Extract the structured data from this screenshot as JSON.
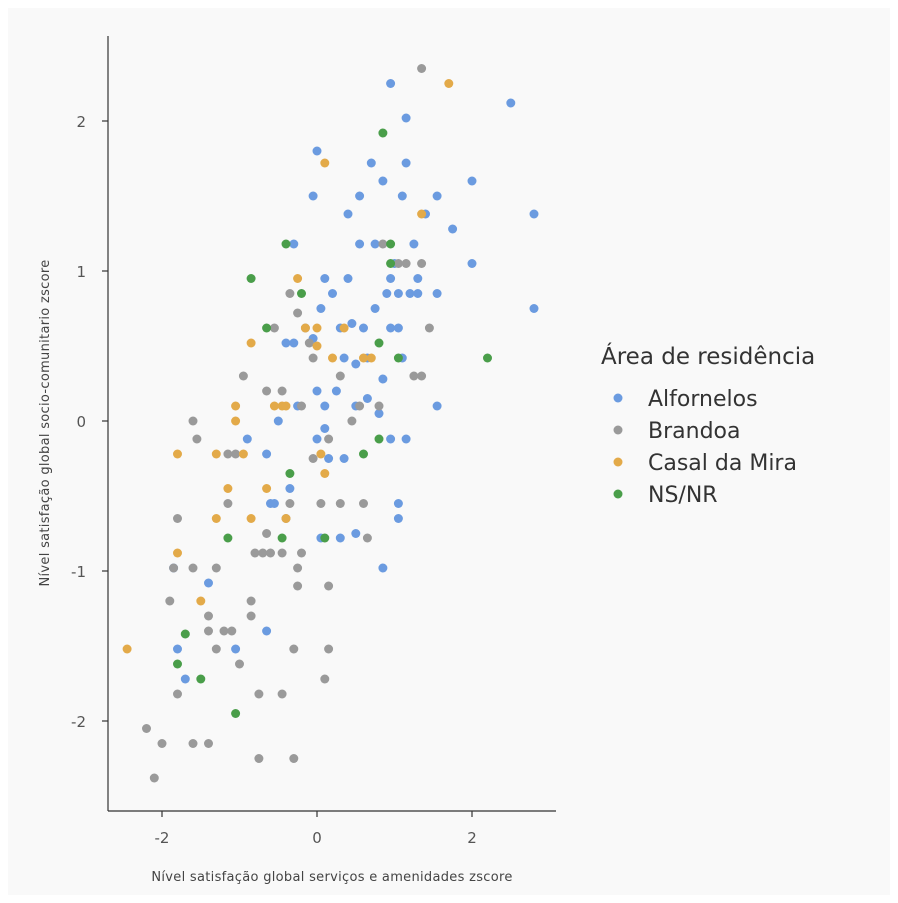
{
  "chart_data": {
    "type": "scatter",
    "title": "",
    "xlabel": "Nível satisfação global serviços e amenidades zscore",
    "ylabel": "Nível satisfação global socio-comunitario zscore",
    "xlim": [
      -2.7,
      3.1
    ],
    "ylim": [
      -2.6,
      2.6
    ],
    "xticks": [
      -2,
      0,
      2
    ],
    "yticks": [
      -2,
      -1,
      0,
      1,
      2
    ],
    "grid": false,
    "legend": {
      "title": "Área de residência",
      "placement": "right"
    },
    "series": [
      {
        "name": "Alfornelos",
        "color": "#6b9be0",
        "points": [
          [
            -1.8,
            -1.52
          ],
          [
            -1.7,
            -1.72
          ],
          [
            -1.85,
            -0.98
          ],
          [
            -1.4,
            -1.08
          ],
          [
            -1.05,
            -1.52
          ],
          [
            -0.65,
            -1.4
          ],
          [
            -0.9,
            -0.12
          ],
          [
            -0.65,
            -0.22
          ],
          [
            -0.6,
            -0.55
          ],
          [
            -0.55,
            -0.55
          ],
          [
            -0.5,
            0.0
          ],
          [
            -0.35,
            -0.45
          ],
          [
            -0.4,
            0.52
          ],
          [
            -0.3,
            0.52
          ],
          [
            -0.25,
            0.1
          ],
          [
            -0.3,
            1.18
          ],
          [
            -0.05,
            0.55
          ],
          [
            0.0,
            0.2
          ],
          [
            0.0,
            -0.12
          ],
          [
            0.05,
            0.75
          ],
          [
            0.1,
            0.95
          ],
          [
            0.1,
            0.1
          ],
          [
            0.1,
            -0.05
          ],
          [
            0.2,
            0.85
          ],
          [
            0.25,
            0.2
          ],
          [
            0.3,
            0.62
          ],
          [
            0.35,
            0.42
          ],
          [
            0.35,
            -0.25
          ],
          [
            0.4,
            1.38
          ],
          [
            0.4,
            0.95
          ],
          [
            0.45,
            0.65
          ],
          [
            0.5,
            0.38
          ],
          [
            0.5,
            0.1
          ],
          [
            0.5,
            -0.75
          ],
          [
            0.55,
            1.18
          ],
          [
            0.6,
            0.62
          ],
          [
            0.65,
            0.42
          ],
          [
            0.65,
            0.15
          ],
          [
            0.7,
            1.72
          ],
          [
            0.75,
            1.18
          ],
          [
            0.75,
            0.75
          ],
          [
            0.8,
            0.05
          ],
          [
            0.85,
            1.6
          ],
          [
            0.85,
            0.28
          ],
          [
            0.9,
            0.85
          ],
          [
            0.95,
            0.62
          ],
          [
            0.95,
            0.95
          ],
          [
            1.0,
            1.05
          ],
          [
            1.05,
            0.85
          ],
          [
            1.05,
            0.62
          ],
          [
            1.1,
            0.42
          ],
          [
            1.15,
            1.72
          ],
          [
            1.15,
            2.02
          ],
          [
            1.2,
            0.85
          ],
          [
            1.25,
            1.18
          ],
          [
            1.3,
            0.95
          ],
          [
            1.3,
            0.85
          ],
          [
            1.15,
            -0.12
          ],
          [
            1.05,
            -0.55
          ],
          [
            1.05,
            -0.65
          ],
          [
            0.85,
            -0.98
          ],
          [
            0.95,
            -0.12
          ],
          [
            0.05,
            -0.78
          ],
          [
            -0.05,
            1.5
          ],
          [
            0.0,
            1.8
          ],
          [
            0.55,
            1.5
          ],
          [
            0.95,
            2.25
          ],
          [
            1.1,
            1.5
          ],
          [
            1.4,
            1.38
          ],
          [
            1.55,
            1.5
          ],
          [
            1.55,
            0.85
          ],
          [
            1.55,
            0.1
          ],
          [
            1.75,
            1.28
          ],
          [
            2.0,
            1.6
          ],
          [
            2.0,
            1.05
          ],
          [
            2.5,
            2.12
          ],
          [
            2.8,
            1.38
          ],
          [
            2.8,
            0.75
          ],
          [
            0.3,
            -0.78
          ],
          [
            0.15,
            -0.25
          ]
        ]
      },
      {
        "name": "Brandoa",
        "color": "#9a9a9a",
        "points": [
          [
            -2.2,
            -2.05
          ],
          [
            -2.1,
            -2.38
          ],
          [
            -2.0,
            -2.15
          ],
          [
            -1.6,
            -2.15
          ],
          [
            -1.4,
            -2.15
          ],
          [
            -0.75,
            -2.25
          ],
          [
            -0.3,
            -2.25
          ],
          [
            -0.45,
            -1.82
          ],
          [
            -0.75,
            -1.82
          ],
          [
            -1.8,
            -1.82
          ],
          [
            -1.9,
            -1.2
          ],
          [
            -1.8,
            -0.65
          ],
          [
            -1.85,
            -0.98
          ],
          [
            -1.6,
            -0.98
          ],
          [
            -1.6,
            0.0
          ],
          [
            -1.55,
            -0.12
          ],
          [
            -1.4,
            -1.4
          ],
          [
            -1.4,
            -1.3
          ],
          [
            -1.3,
            -0.98
          ],
          [
            -1.3,
            -1.52
          ],
          [
            -1.2,
            -1.4
          ],
          [
            -1.15,
            -0.55
          ],
          [
            -1.1,
            -1.4
          ],
          [
            -1.15,
            -0.22
          ],
          [
            -1.05,
            -0.22
          ],
          [
            -1.0,
            -1.62
          ],
          [
            -0.95,
            0.3
          ],
          [
            -0.85,
            -1.2
          ],
          [
            -0.85,
            -1.3
          ],
          [
            -0.8,
            -0.88
          ],
          [
            -0.7,
            -0.88
          ],
          [
            -0.65,
            -0.75
          ],
          [
            -0.65,
            0.2
          ],
          [
            -0.6,
            -0.88
          ],
          [
            -0.55,
            0.62
          ],
          [
            -0.45,
            0.2
          ],
          [
            -0.45,
            -0.88
          ],
          [
            -0.4,
            -0.65
          ],
          [
            -0.35,
            -0.55
          ],
          [
            -0.3,
            -1.52
          ],
          [
            -0.25,
            -1.1
          ],
          [
            -0.25,
            -0.98
          ],
          [
            -0.2,
            -0.88
          ],
          [
            -0.2,
            0.1
          ],
          [
            -0.15,
            0.62
          ],
          [
            -0.1,
            0.52
          ],
          [
            -0.05,
            0.42
          ],
          [
            -0.05,
            -0.25
          ],
          [
            0.05,
            -0.55
          ],
          [
            0.1,
            -1.72
          ],
          [
            0.15,
            -1.52
          ],
          [
            0.15,
            -1.1
          ],
          [
            0.15,
            -0.12
          ],
          [
            0.3,
            0.3
          ],
          [
            0.3,
            -0.55
          ],
          [
            0.45,
            0.0
          ],
          [
            0.55,
            0.1
          ],
          [
            0.6,
            -0.55
          ],
          [
            0.65,
            -0.78
          ],
          [
            0.8,
            0.1
          ],
          [
            0.85,
            1.18
          ],
          [
            1.05,
            1.05
          ],
          [
            1.15,
            1.05
          ],
          [
            1.25,
            0.3
          ],
          [
            1.35,
            0.3
          ],
          [
            1.35,
            1.05
          ],
          [
            1.45,
            0.62
          ],
          [
            1.35,
            2.35
          ],
          [
            -0.35,
            0.85
          ],
          [
            -0.25,
            0.72
          ]
        ]
      },
      {
        "name": "Casal da Mira",
        "color": "#e3aa49",
        "points": [
          [
            -2.45,
            -1.52
          ],
          [
            -1.8,
            -0.88
          ],
          [
            -1.8,
            -0.22
          ],
          [
            -1.5,
            -1.2
          ],
          [
            -1.3,
            -0.22
          ],
          [
            -1.3,
            -0.65
          ],
          [
            -1.15,
            -0.45
          ],
          [
            -1.05,
            0.1
          ],
          [
            -1.05,
            0.0
          ],
          [
            -0.95,
            -0.22
          ],
          [
            -0.85,
            -0.65
          ],
          [
            -0.85,
            0.52
          ],
          [
            -0.65,
            -0.45
          ],
          [
            -0.55,
            0.1
          ],
          [
            -0.45,
            0.1
          ],
          [
            -0.4,
            0.1
          ],
          [
            -0.4,
            -0.65
          ],
          [
            -0.25,
            0.95
          ],
          [
            0.0,
            0.62
          ],
          [
            0.05,
            -0.22
          ],
          [
            0.1,
            -0.35
          ],
          [
            0.1,
            1.72
          ],
          [
            0.2,
            0.42
          ],
          [
            0.35,
            0.62
          ],
          [
            0.6,
            0.42
          ],
          [
            0.7,
            0.42
          ],
          [
            1.35,
            1.38
          ],
          [
            1.7,
            2.25
          ],
          [
            -0.15,
            0.62
          ],
          [
            0.0,
            0.5
          ]
        ]
      },
      {
        "name": "NS/NR",
        "color": "#4a9e4a",
        "points": [
          [
            -1.8,
            -1.62
          ],
          [
            -1.7,
            -1.42
          ],
          [
            -1.5,
            -1.72
          ],
          [
            -1.05,
            -1.95
          ],
          [
            -1.15,
            -0.78
          ],
          [
            -0.85,
            0.95
          ],
          [
            -0.65,
            0.62
          ],
          [
            -0.45,
            -0.78
          ],
          [
            -0.35,
            -0.35
          ],
          [
            -0.2,
            0.85
          ],
          [
            -0.4,
            1.18
          ],
          [
            0.1,
            -0.78
          ],
          [
            0.6,
            -0.22
          ],
          [
            0.8,
            -0.12
          ],
          [
            0.8,
            0.52
          ],
          [
            0.85,
            1.92
          ],
          [
            0.95,
            1.05
          ],
          [
            0.95,
            1.18
          ],
          [
            1.05,
            0.42
          ],
          [
            2.2,
            0.42
          ]
        ]
      }
    ]
  }
}
